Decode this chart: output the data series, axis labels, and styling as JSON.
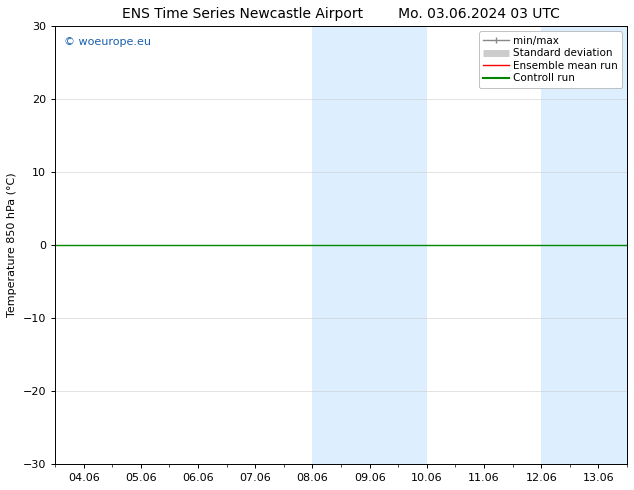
{
  "title_left": "ENS Time Series Newcastle Airport",
  "title_right": "Mo. 03.06.2024 03 UTC",
  "ylabel": "Temperature 850 hPa (°C)",
  "ylim": [
    -30,
    30
  ],
  "yticks": [
    -30,
    -20,
    -10,
    0,
    10,
    20,
    30
  ],
  "xlabels": [
    "04.06",
    "05.06",
    "06.06",
    "07.06",
    "08.06",
    "09.06",
    "10.06",
    "11.06",
    "12.06",
    "13.06"
  ],
  "watermark": "© woeurope.eu",
  "shaded_regions": [
    {
      "xstart": 4.0,
      "xend": 6.0,
      "color": "#ddeeff"
    },
    {
      "xstart": 8.0,
      "xend": 9.5,
      "color": "#ddeeff"
    }
  ],
  "hline_y": 0,
  "hline_color": "#008800",
  "legend_items": [
    {
      "label": "min/max",
      "color": "#888888",
      "lw": 1.0
    },
    {
      "label": "Standard deviation",
      "color": "#cccccc",
      "lw": 5
    },
    {
      "label": "Ensemble mean run",
      "color": "#ff0000",
      "lw": 1.0
    },
    {
      "label": "Controll run",
      "color": "#008800",
      "lw": 1.5
    }
  ],
  "background_color": "#ffffff",
  "plot_bg_color": "#ffffff",
  "title_fontsize": 10,
  "axis_fontsize": 8,
  "tick_fontsize": 8,
  "watermark_color": "#1a5fad"
}
